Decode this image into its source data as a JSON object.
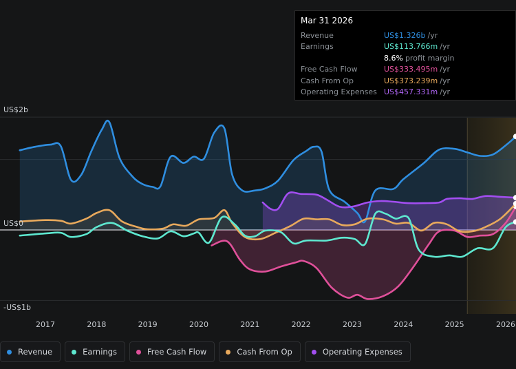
{
  "tooltip": {
    "date": "Mar 31 2026",
    "rows": [
      {
        "label": "Revenue",
        "value": "US$1.326b",
        "unit": "/yr",
        "color": "#2f8ee0"
      },
      {
        "label": "Earnings",
        "value": "US$113.766m",
        "unit": "/yr",
        "color": "#5ee8d0"
      },
      {
        "label": "Free Cash Flow",
        "value": "US$333.495m",
        "unit": "/yr",
        "color": "#e0509a"
      },
      {
        "label": "Cash From Op",
        "value": "US$373.239m",
        "unit": "/yr",
        "color": "#e8a95c"
      },
      {
        "label": "Operating Expenses",
        "value": "US$457.331m",
        "unit": "/yr",
        "color": "#a24ef0"
      }
    ],
    "profit_margin_pct": "8.6%",
    "profit_margin_label": "profit margin"
  },
  "legend": [
    {
      "label": "Revenue",
      "color": "#2f8ee0"
    },
    {
      "label": "Earnings",
      "color": "#5ee8d0"
    },
    {
      "label": "Free Cash Flow",
      "color": "#e0509a"
    },
    {
      "label": "Cash From Op",
      "color": "#e8a95c"
    },
    {
      "label": "Operating Expenses",
      "color": "#a24ef0"
    }
  ],
  "chart_data": {
    "type": "line",
    "y_tick_labels": [
      "US$2b",
      "US$0",
      "-US$1b"
    ],
    "x_tick_labels": [
      "2017",
      "2018",
      "2019",
      "2020",
      "2021",
      "2022",
      "2023",
      "2024",
      "2025",
      "2026"
    ],
    "ylim_millions": [
      -1000,
      1600
    ],
    "xlim_years": [
      2016.2,
      2026.2
    ],
    "forecast_start_year": 2025.25,
    "series": [
      {
        "name": "Revenue",
        "color": "#2f8ee0",
        "fill": true,
        "points": [
          [
            2016.5,
            1130
          ],
          [
            2016.8,
            1180
          ],
          [
            2017.1,
            1210
          ],
          [
            2017.3,
            1190
          ],
          [
            2017.5,
            710
          ],
          [
            2017.7,
            780
          ],
          [
            2017.9,
            1120
          ],
          [
            2018.1,
            1420
          ],
          [
            2018.25,
            1530
          ],
          [
            2018.45,
            1020
          ],
          [
            2018.7,
            760
          ],
          [
            2018.9,
            650
          ],
          [
            2019.1,
            610
          ],
          [
            2019.25,
            620
          ],
          [
            2019.45,
            1040
          ],
          [
            2019.7,
            950
          ],
          [
            2019.9,
            1040
          ],
          [
            2020.1,
            1010
          ],
          [
            2020.3,
            1380
          ],
          [
            2020.5,
            1440
          ],
          [
            2020.65,
            790
          ],
          [
            2020.85,
            560
          ],
          [
            2021.1,
            560
          ],
          [
            2021.3,
            590
          ],
          [
            2021.55,
            700
          ],
          [
            2021.85,
            990
          ],
          [
            2022.1,
            1120
          ],
          [
            2022.25,
            1180
          ],
          [
            2022.4,
            1110
          ],
          [
            2022.55,
            570
          ],
          [
            2022.85,
            400
          ],
          [
            2023.1,
            240
          ],
          [
            2023.25,
            120
          ],
          [
            2023.45,
            560
          ],
          [
            2023.8,
            580
          ],
          [
            2024.0,
            720
          ],
          [
            2024.4,
            950
          ],
          [
            2024.7,
            1140
          ],
          [
            2025.0,
            1150
          ],
          [
            2025.25,
            1100
          ],
          [
            2025.5,
            1050
          ],
          [
            2025.75,
            1070
          ],
          [
            2026.0,
            1200
          ],
          [
            2026.2,
            1326
          ]
        ]
      },
      {
        "name": "Earnings",
        "color": "#5ee8d0",
        "fill": false,
        "points": [
          [
            2016.5,
            -80
          ],
          [
            2017.0,
            -50
          ],
          [
            2017.3,
            -40
          ],
          [
            2017.5,
            -100
          ],
          [
            2017.8,
            -60
          ],
          [
            2018.0,
            40
          ],
          [
            2018.3,
            100
          ],
          [
            2018.6,
            -10
          ],
          [
            2018.9,
            -90
          ],
          [
            2019.2,
            -120
          ],
          [
            2019.45,
            -20
          ],
          [
            2019.7,
            -90
          ],
          [
            2019.9,
            -50
          ],
          [
            2020.0,
            -40
          ],
          [
            2020.2,
            -180
          ],
          [
            2020.45,
            180
          ],
          [
            2020.7,
            80
          ],
          [
            2020.9,
            -80
          ],
          [
            2021.1,
            -90
          ],
          [
            2021.3,
            -10
          ],
          [
            2021.6,
            -30
          ],
          [
            2021.85,
            -190
          ],
          [
            2022.1,
            -150
          ],
          [
            2022.5,
            -150
          ],
          [
            2022.8,
            -110
          ],
          [
            2023.05,
            -130
          ],
          [
            2023.25,
            -200
          ],
          [
            2023.45,
            230
          ],
          [
            2023.65,
            230
          ],
          [
            2023.85,
            160
          ],
          [
            2024.1,
            170
          ],
          [
            2024.3,
            -280
          ],
          [
            2024.6,
            -380
          ],
          [
            2024.9,
            -360
          ],
          [
            2025.15,
            -380
          ],
          [
            2025.45,
            -260
          ],
          [
            2025.75,
            -260
          ],
          [
            2026.0,
            40
          ],
          [
            2026.2,
            113.766
          ]
        ]
      },
      {
        "name": "Free Cash Flow",
        "color": "#e0509a",
        "fill": true,
        "points": [
          [
            2020.25,
            -220
          ],
          [
            2020.55,
            -160
          ],
          [
            2020.8,
            -420
          ],
          [
            2021.0,
            -560
          ],
          [
            2021.3,
            -590
          ],
          [
            2021.6,
            -520
          ],
          [
            2021.9,
            -460
          ],
          [
            2022.05,
            -440
          ],
          [
            2022.3,
            -540
          ],
          [
            2022.6,
            -820
          ],
          [
            2022.9,
            -960
          ],
          [
            2023.1,
            -920
          ],
          [
            2023.3,
            -980
          ],
          [
            2023.6,
            -940
          ],
          [
            2023.9,
            -800
          ],
          [
            2024.2,
            -520
          ],
          [
            2024.5,
            -200
          ],
          [
            2024.7,
            -20
          ],
          [
            2025.0,
            -10
          ],
          [
            2025.25,
            -100
          ],
          [
            2025.5,
            -80
          ],
          [
            2025.75,
            -60
          ],
          [
            2026.0,
            100
          ],
          [
            2026.2,
            333.495
          ]
        ]
      },
      {
        "name": "Cash From Op",
        "color": "#e8a95c",
        "fill": true,
        "points": [
          [
            2016.5,
            120
          ],
          [
            2017.0,
            140
          ],
          [
            2017.3,
            130
          ],
          [
            2017.5,
            90
          ],
          [
            2017.8,
            160
          ],
          [
            2018.0,
            240
          ],
          [
            2018.25,
            280
          ],
          [
            2018.5,
            120
          ],
          [
            2018.8,
            40
          ],
          [
            2019.0,
            10
          ],
          [
            2019.3,
            20
          ],
          [
            2019.5,
            80
          ],
          [
            2019.75,
            60
          ],
          [
            2020.0,
            150
          ],
          [
            2020.3,
            170
          ],
          [
            2020.5,
            280
          ],
          [
            2020.65,
            100
          ],
          [
            2020.9,
            -100
          ],
          [
            2021.2,
            -130
          ],
          [
            2021.5,
            -40
          ],
          [
            2021.8,
            60
          ],
          [
            2022.05,
            160
          ],
          [
            2022.3,
            150
          ],
          [
            2022.55,
            150
          ],
          [
            2022.8,
            70
          ],
          [
            2023.05,
            80
          ],
          [
            2023.3,
            160
          ],
          [
            2023.6,
            150
          ],
          [
            2023.85,
            90
          ],
          [
            2024.1,
            100
          ],
          [
            2024.35,
            -10
          ],
          [
            2024.6,
            100
          ],
          [
            2024.85,
            80
          ],
          [
            2025.1,
            -20
          ],
          [
            2025.35,
            -20
          ],
          [
            2025.6,
            40
          ],
          [
            2025.9,
            160
          ],
          [
            2026.2,
            373.239
          ]
        ]
      },
      {
        "name": "Operating Expenses",
        "color": "#a24ef0",
        "fill": true,
        "points": [
          [
            2021.25,
            390
          ],
          [
            2021.4,
            300
          ],
          [
            2021.55,
            300
          ],
          [
            2021.75,
            520
          ],
          [
            2022.0,
            510
          ],
          [
            2022.3,
            500
          ],
          [
            2022.5,
            430
          ],
          [
            2022.75,
            330
          ],
          [
            2023.0,
            330
          ],
          [
            2023.3,
            390
          ],
          [
            2023.55,
            410
          ],
          [
            2023.8,
            400
          ],
          [
            2024.1,
            380
          ],
          [
            2024.4,
            380
          ],
          [
            2024.7,
            390
          ],
          [
            2024.85,
            440
          ],
          [
            2025.1,
            450
          ],
          [
            2025.35,
            440
          ],
          [
            2025.6,
            480
          ],
          [
            2025.9,
            470
          ],
          [
            2026.2,
            457.331
          ]
        ]
      }
    ]
  }
}
